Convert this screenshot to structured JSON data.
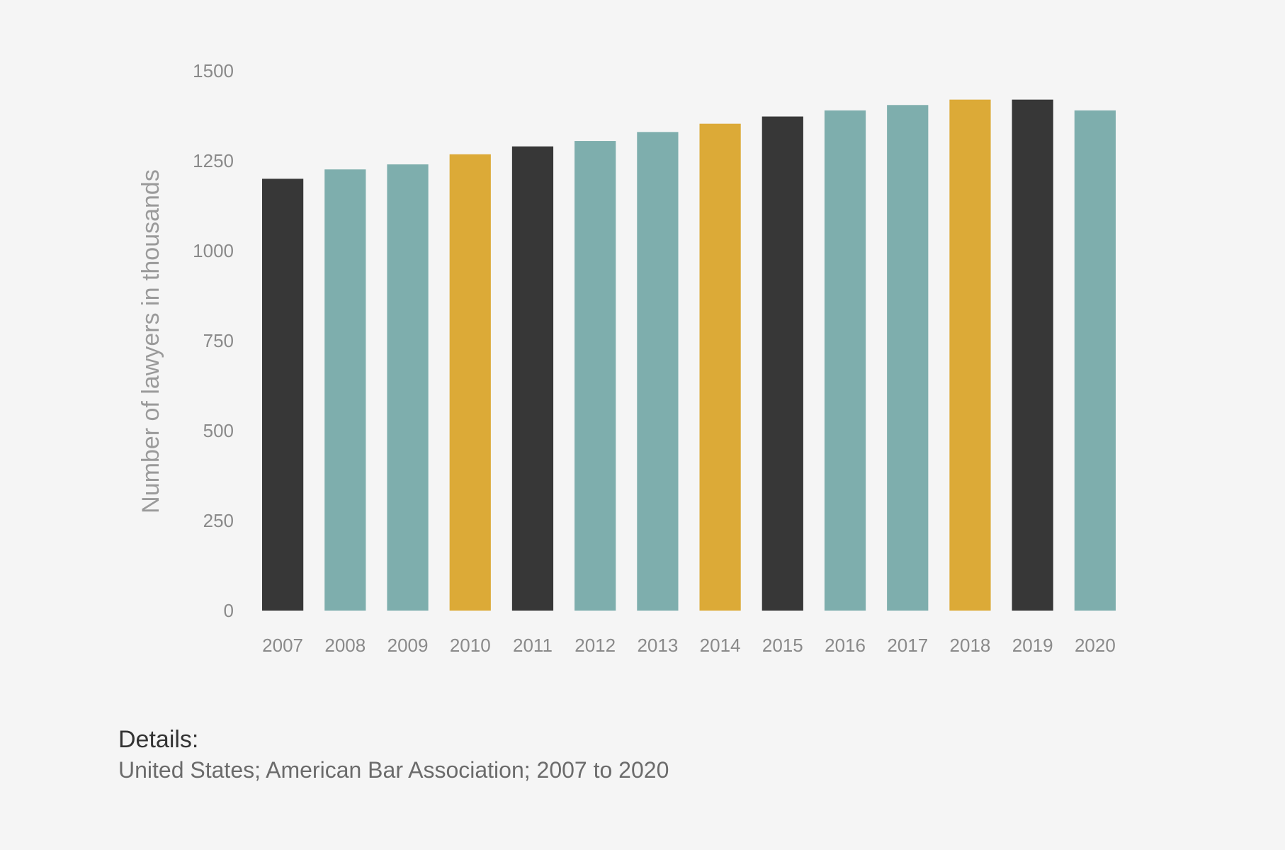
{
  "chart_data": {
    "type": "bar",
    "categories": [
      "2007",
      "2008",
      "2009",
      "2010",
      "2011",
      "2012",
      "2013",
      "2014",
      "2015",
      "2016",
      "2017",
      "2018",
      "2019",
      "2020"
    ],
    "values": [
      1200,
      1226,
      1240,
      1268,
      1290,
      1305,
      1330,
      1353,
      1373,
      1390,
      1405,
      1420,
      1420,
      1390
    ],
    "bar_colors": [
      "#373737",
      "#7eaead",
      "#7eaead",
      "#dcaa37",
      "#373737",
      "#7eaead",
      "#7eaead",
      "#dcaa37",
      "#373737",
      "#7eaead",
      "#7eaead",
      "#dcaa37",
      "#373737",
      "#7eaead"
    ],
    "ylabel": "Number of lawyers in thousands",
    "xlabel": "",
    "ylim": [
      0,
      1500
    ],
    "yticks": [
      "0",
      "250",
      "500",
      "750",
      "1000",
      "1250",
      "1500"
    ],
    "grid": false,
    "legend": "none"
  },
  "details": {
    "heading": "Details:",
    "text": "United States; American Bar Association; 2007 to 2020"
  }
}
